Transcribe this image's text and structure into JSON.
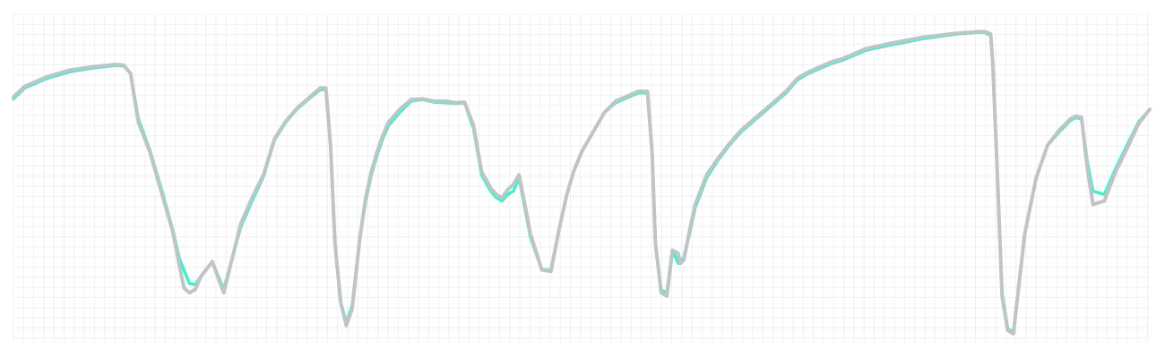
{
  "chart_data": {
    "type": "line",
    "title": "",
    "xlabel": "",
    "ylabel": "",
    "xlim": [
      0,
      1
    ],
    "ylim": [
      0,
      1
    ],
    "grid": true,
    "legend": "none",
    "series": [
      {
        "color": "#3df2d0",
        "x": [
          0,
          0.01,
          0.03,
          0.05,
          0.07,
          0.09,
          0.097,
          0.103,
          0.11,
          0.12,
          0.13,
          0.14,
          0.146,
          0.155,
          0.16,
          0.165,
          0.175,
          0.185,
          0.2,
          0.21,
          0.22,
          0.23,
          0.24,
          0.25,
          0.26,
          0.27,
          0.275,
          0.279,
          0.283,
          0.288,
          0.293,
          0.298,
          0.305,
          0.31,
          0.315,
          0.32,
          0.325,
          0.33,
          0.34,
          0.35,
          0.36,
          0.37,
          0.38,
          0.39,
          0.397,
          0.405,
          0.412,
          0.42,
          0.425,
          0.43,
          0.435,
          0.44,
          0.445,
          0.455,
          0.465,
          0.473,
          0.48,
          0.487,
          0.493,
          0.5,
          0.51,
          0.52,
          0.53,
          0.54,
          0.55,
          0.558,
          0.562,
          0.565,
          0.57,
          0.575,
          0.58,
          0.585,
          0.587,
          0.59,
          0.595,
          0.6,
          0.61,
          0.62,
          0.63,
          0.64,
          0.65,
          0.66,
          0.67,
          0.68,
          0.69,
          0.7,
          0.71,
          0.72,
          0.73,
          0.74,
          0.75,
          0.77,
          0.8,
          0.83,
          0.85,
          0.855,
          0.86,
          0.862,
          0.866,
          0.87,
          0.875,
          0.88,
          0.89,
          0.9,
          0.91,
          0.92,
          0.93,
          0.935,
          0.94,
          0.945,
          0.95,
          0.96,
          0.97,
          0.98,
          0.99,
          1
        ],
        "y": [
          0.742,
          0.775,
          0.805,
          0.825,
          0.836,
          0.844,
          0.842,
          0.82,
          0.68,
          0.585,
          0.47,
          0.345,
          0.255,
          0.178,
          0.175,
          0.2,
          0.245,
          0.16,
          0.35,
          0.43,
          0.505,
          0.618,
          0.672,
          0.712,
          0.742,
          0.77,
          0.77,
          0.6,
          0.3,
          0.12,
          0.06,
          0.11,
          0.32,
          0.43,
          0.51,
          0.57,
          0.62,
          0.66,
          0.7,
          0.735,
          0.74,
          0.732,
          0.73,
          0.728,
          0.73,
          0.65,
          0.51,
          0.46,
          0.44,
          0.43,
          0.45,
          0.46,
          0.5,
          0.32,
          0.22,
          0.22,
          0.34,
          0.45,
          0.52,
          0.58,
          0.64,
          0.7,
          0.73,
          0.745,
          0.76,
          0.76,
          0.58,
          0.3,
          0.158,
          0.15,
          0.28,
          0.24,
          0.24,
          0.26,
          0.33,
          0.41,
          0.5,
          0.555,
          0.6,
          0.64,
          0.67,
          0.7,
          0.73,
          0.76,
          0.8,
          0.82,
          0.835,
          0.85,
          0.86,
          0.875,
          0.89,
          0.905,
          0.925,
          0.94,
          0.945,
          0.945,
          0.935,
          0.85,
          0.5,
          0.15,
          0.04,
          0.03,
          0.33,
          0.5,
          0.6,
          0.64,
          0.675,
          0.685,
          0.68,
          0.55,
          0.46,
          0.45,
          0.53,
          0.6,
          0.67,
          0.71
        ]
      },
      {
        "color": "#c0c4c6",
        "x": [
          0,
          0.01,
          0.03,
          0.05,
          0.07,
          0.09,
          0.097,
          0.103,
          0.11,
          0.12,
          0.13,
          0.14,
          0.146,
          0.15,
          0.155,
          0.16,
          0.165,
          0.175,
          0.185,
          0.2,
          0.21,
          0.22,
          0.23,
          0.24,
          0.25,
          0.26,
          0.27,
          0.275,
          0.279,
          0.283,
          0.288,
          0.293,
          0.298,
          0.305,
          0.31,
          0.315,
          0.32,
          0.325,
          0.33,
          0.34,
          0.35,
          0.36,
          0.37,
          0.38,
          0.39,
          0.397,
          0.405,
          0.412,
          0.42,
          0.425,
          0.43,
          0.435,
          0.44,
          0.445,
          0.455,
          0.465,
          0.473,
          0.48,
          0.487,
          0.493,
          0.5,
          0.51,
          0.52,
          0.53,
          0.54,
          0.55,
          0.558,
          0.562,
          0.565,
          0.57,
          0.575,
          0.58,
          0.585,
          0.587,
          0.59,
          0.595,
          0.6,
          0.61,
          0.62,
          0.63,
          0.64,
          0.65,
          0.66,
          0.67,
          0.68,
          0.69,
          0.7,
          0.71,
          0.72,
          0.73,
          0.74,
          0.75,
          0.77,
          0.8,
          0.83,
          0.85,
          0.855,
          0.86,
          0.862,
          0.866,
          0.87,
          0.875,
          0.88,
          0.89,
          0.9,
          0.91,
          0.92,
          0.93,
          0.935,
          0.94,
          0.945,
          0.95,
          0.96,
          0.97,
          0.98,
          0.99,
          1
        ],
        "y": [
          0.748,
          0.78,
          0.81,
          0.83,
          0.84,
          0.847,
          0.845,
          0.82,
          0.67,
          0.58,
          0.46,
          0.34,
          0.235,
          0.165,
          0.15,
          0.16,
          0.2,
          0.245,
          0.15,
          0.36,
          0.44,
          0.51,
          0.622,
          0.675,
          0.715,
          0.745,
          0.775,
          0.775,
          0.6,
          0.3,
          0.12,
          0.05,
          0.1,
          0.32,
          0.44,
          0.52,
          0.58,
          0.63,
          0.67,
          0.71,
          0.74,
          0.742,
          0.735,
          0.735,
          0.73,
          0.732,
          0.66,
          0.52,
          0.47,
          0.45,
          0.44,
          0.465,
          0.48,
          0.51,
          0.33,
          0.22,
          0.215,
          0.34,
          0.45,
          0.52,
          0.58,
          0.64,
          0.7,
          0.735,
          0.75,
          0.765,
          0.765,
          0.58,
          0.3,
          0.15,
          0.14,
          0.28,
          0.27,
          0.24,
          0.25,
          0.34,
          0.42,
          0.51,
          0.56,
          0.605,
          0.645,
          0.675,
          0.705,
          0.735,
          0.765,
          0.805,
          0.825,
          0.84,
          0.855,
          0.865,
          0.88,
          0.895,
          0.91,
          0.93,
          0.942,
          0.947,
          0.947,
          0.94,
          0.84,
          0.5,
          0.14,
          0.035,
          0.025,
          0.33,
          0.5,
          0.6,
          0.645,
          0.68,
          0.69,
          0.685,
          0.53,
          0.42,
          0.43,
          0.52,
          0.59,
          0.665,
          0.71
        ]
      }
    ]
  }
}
